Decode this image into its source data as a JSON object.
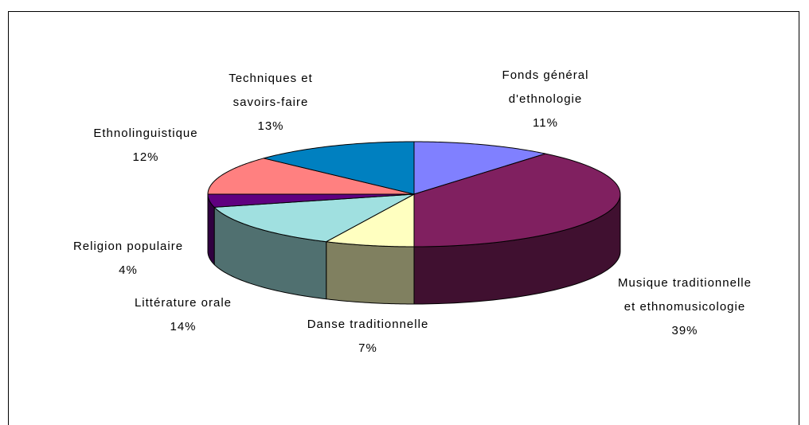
{
  "chart_data": {
    "type": "pie3d",
    "categories": [
      "Fonds général d'ethnologie",
      "Musique traditionnelle et ethnomusicologie",
      "Danse traditionnelle",
      "Littérature orale",
      "Religion populaire",
      "Ethnolinguistique",
      "Techniques et savoirs-faire"
    ],
    "values": [
      11,
      39,
      7,
      14,
      4,
      12,
      13
    ],
    "value_labels": [
      "11%",
      "39%",
      "7%",
      "14%",
      "4%",
      "12%",
      "13%"
    ],
    "colors": [
      "#8080ff",
      "#802060",
      "#ffffc0",
      "#a0e0e0",
      "#600080",
      "#ff8080",
      "#0080c0"
    ]
  }
}
